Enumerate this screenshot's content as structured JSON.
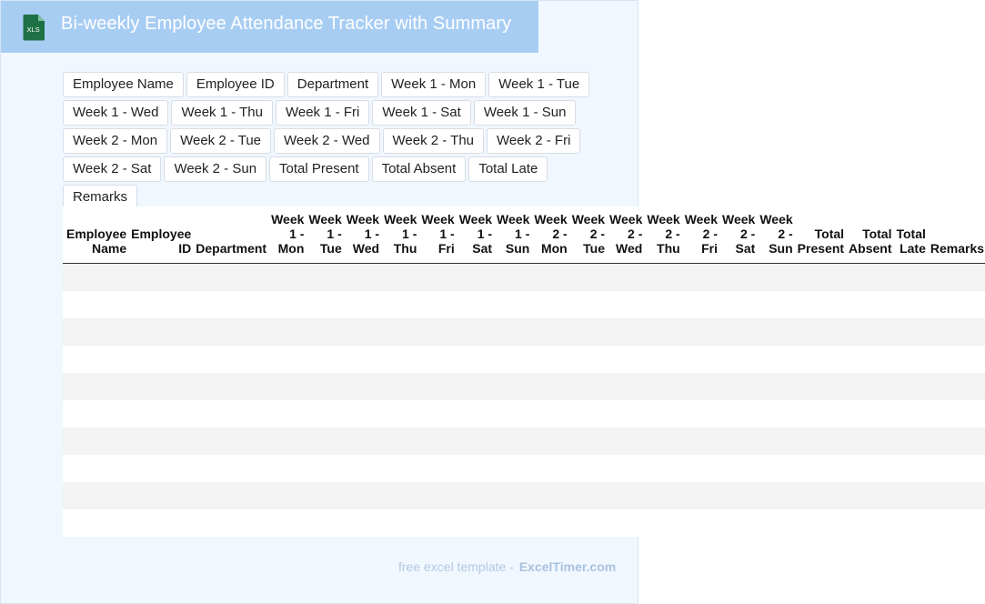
{
  "header": {
    "icon_label": "XLS",
    "title": "Bi-weekly Employee Attendance Tracker with Summary"
  },
  "fields": [
    "Employee Name",
    "Employee ID",
    "Department",
    "Week 1 - Mon",
    "Week 1 - Tue",
    "Week 1 - Wed",
    "Week 1 - Thu",
    "Week 1 - Fri",
    "Week 1 - Sat",
    "Week 1 - Sun",
    "Week 2 - Mon",
    "Week 2 - Tue",
    "Week 2 - Wed",
    "Week 2 - Thu",
    "Week 2 - Fri",
    "Week 2 - Sat",
    "Week 2 - Sun",
    "Total Present",
    "Total Absent",
    "Total Late",
    "Remarks"
  ],
  "table": {
    "headers": [
      "Employee Name",
      "Employee ID",
      "Department",
      "Week 1 - Mon",
      "Week 1 - Tue",
      "Week 1 - Wed",
      "Week 1 - Thu",
      "Week 1 - Fri",
      "Week 1 - Sat",
      "Week 1 - Sun",
      "Week 2 - Mon",
      "Week 2 - Tue",
      "Week 2 - Wed",
      "Week 2 - Thu",
      "Week 2 - Fri",
      "Week 2 - Sat",
      "Week 2 - Sun",
      "Total Present",
      "Total Absent",
      "Total Late",
      "Remarks"
    ],
    "empty_rows": 10
  },
  "footer": {
    "text": "free excel template -",
    "brand": "ExcelTimer.com"
  },
  "colors": {
    "title_bar": "#a8cdf3",
    "background": "#f1f7ff",
    "icon_green": "#1e7145",
    "stripe": "#f3f3f3"
  }
}
